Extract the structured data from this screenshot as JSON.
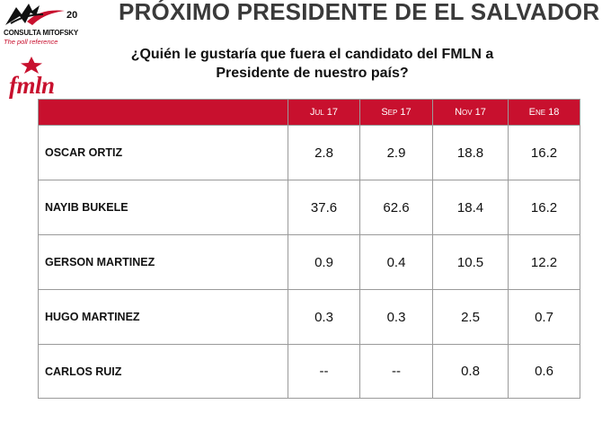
{
  "logo": {
    "name": "CONSULTA MITOFSKY",
    "tagline": "The poll reference",
    "anniversary": "20"
  },
  "header": {
    "title": "PRÓXIMO PRESIDENTE DE EL SALVADOR"
  },
  "party_logo": {
    "text": "fmln"
  },
  "question": {
    "line1": "¿Quién le gustaría que fuera el candidato del FMLN a",
    "line2": "Presidente de nuestro país?"
  },
  "table": {
    "columns": [
      "Jul 17",
      "Sep 17",
      "Nov 17",
      "Ene 18"
    ],
    "rows": [
      {
        "name": "OSCAR ORTIZ",
        "values": [
          "2.8",
          "2.9",
          "18.8",
          "16.2"
        ]
      },
      {
        "name": "NAYIB BUKELE",
        "values": [
          "37.6",
          "62.6",
          "18.4",
          "16.2"
        ]
      },
      {
        "name": "GERSON MARTINEZ",
        "values": [
          "0.9",
          "0.4",
          "10.5",
          "12.2"
        ]
      },
      {
        "name": "HUGO MARTINEZ",
        "values": [
          "0.3",
          "0.3",
          "2.5",
          "0.7"
        ]
      },
      {
        "name": "CARLOS RUIZ",
        "values": [
          "--",
          "--",
          "0.8",
          "0.6"
        ]
      }
    ]
  },
  "colors": {
    "accent": "#c8102e",
    "title": "#3a3a3a"
  }
}
